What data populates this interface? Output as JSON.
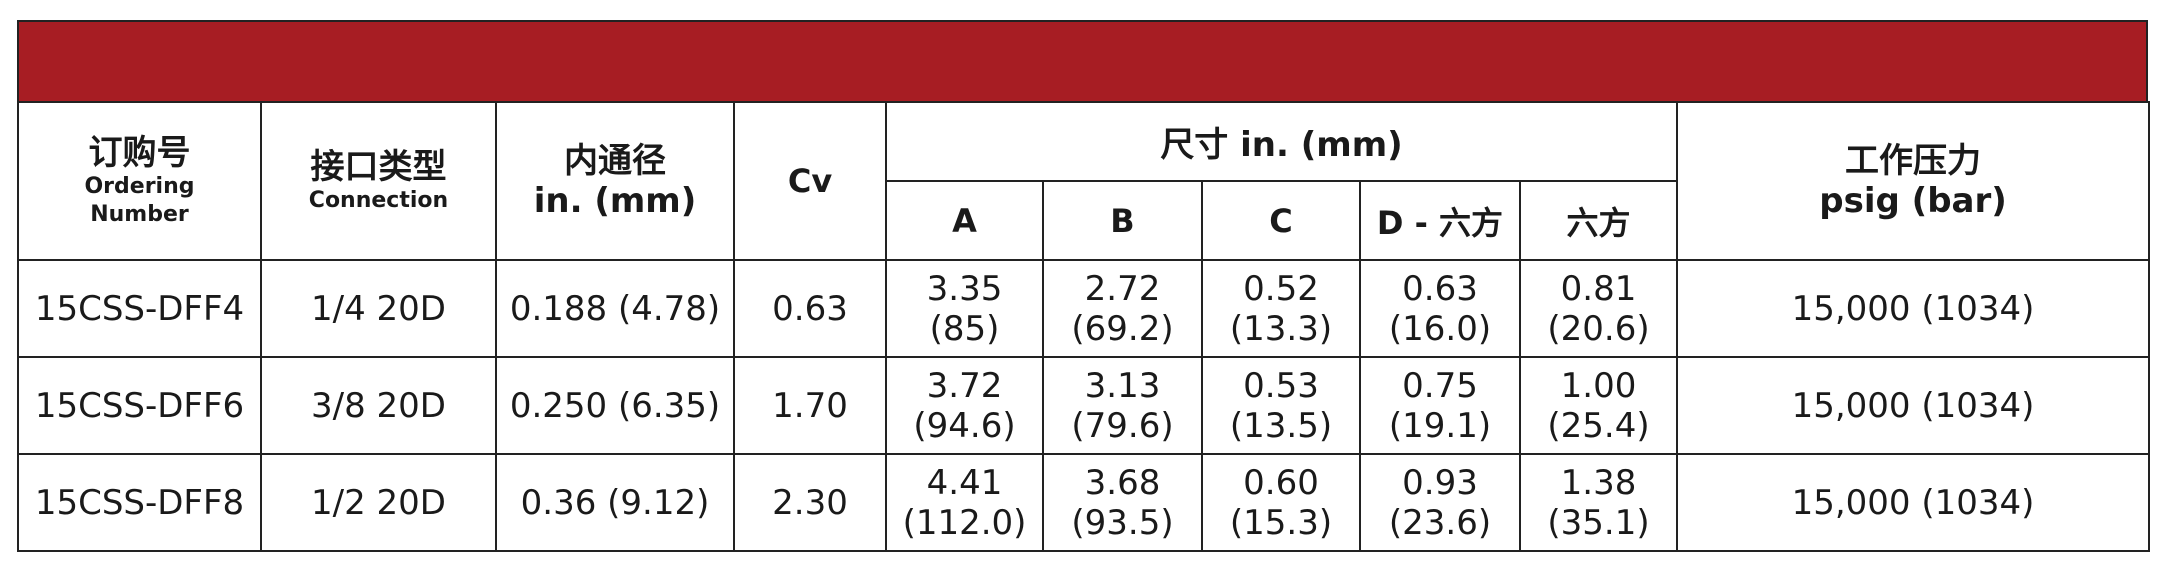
{
  "header": {
    "ordering_zh": "订购号",
    "ordering_en_1": "Ordering",
    "ordering_en_2": "Number",
    "connection_zh": "接口类型",
    "connection_en": "Connection",
    "bore_zh": "内通径",
    "bore_unit": "in. (mm)",
    "cv": "Cv",
    "dims": "尺寸 in. (mm)",
    "col_a": "A",
    "col_b": "B",
    "col_c": "C",
    "col_d": "D - 六方",
    "col_hex": "六方",
    "pressure_zh": "工作压力",
    "pressure_unit": "psig (bar)"
  },
  "colors": {
    "banner": "#a71d23",
    "border": "#222222"
  },
  "rows": [
    {
      "ordering": "15CSS-DFF4",
      "connection": "1/4 20D",
      "bore": "0.188 (4.78)",
      "cv": "0.63",
      "a": [
        "3.35",
        "(85)"
      ],
      "b": [
        "2.72",
        "(69.2)"
      ],
      "c": [
        "0.52",
        "(13.3)"
      ],
      "d": [
        "0.63",
        "(16.0)"
      ],
      "hex": [
        "0.81",
        "(20.6)"
      ],
      "pressure": "15,000 (1034)"
    },
    {
      "ordering": "15CSS-DFF6",
      "connection": "3/8 20D",
      "bore": "0.250 (6.35)",
      "cv": "1.70",
      "a": [
        "3.72",
        "(94.6)"
      ],
      "b": [
        "3.13",
        "(79.6)"
      ],
      "c": [
        "0.53",
        "(13.5)"
      ],
      "d": [
        "0.75",
        "(19.1)"
      ],
      "hex": [
        "1.00",
        "(25.4)"
      ],
      "pressure": "15,000 (1034)"
    },
    {
      "ordering": "15CSS-DFF8",
      "connection": "1/2 20D",
      "bore": "0.36 (9.12)",
      "cv": "2.30",
      "a": [
        "4.41",
        "(112.0)"
      ],
      "b": [
        "3.68",
        "(93.5)"
      ],
      "c": [
        "0.60",
        "(15.3)"
      ],
      "d": [
        "0.93",
        "(23.6)"
      ],
      "hex": [
        "1.38",
        "(35.1)"
      ],
      "pressure": "15,000 (1034)"
    }
  ]
}
